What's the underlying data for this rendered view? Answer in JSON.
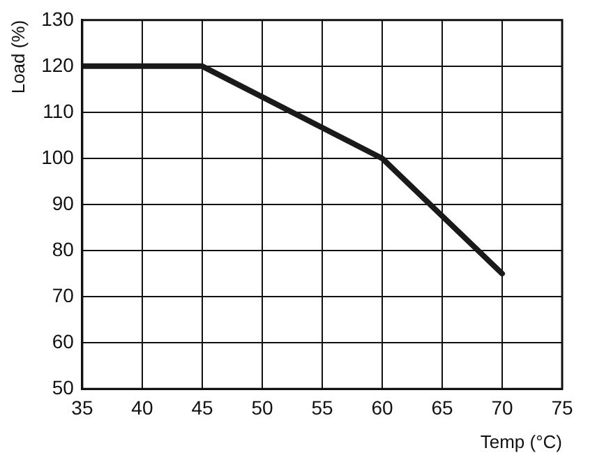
{
  "chart_data": {
    "type": "line",
    "xlabel": "Temp (°C)",
    "ylabel": "Load (%)",
    "x": [
      35,
      45,
      60,
      70
    ],
    "series": [
      {
        "color": "#1a1a1a",
        "values": [
          120,
          120,
          100,
          75
        ]
      }
    ],
    "xlim": [
      35,
      75
    ],
    "xticks": [
      35,
      40,
      45,
      50,
      55,
      60,
      65,
      70,
      75
    ],
    "ylim": [
      50,
      130
    ],
    "yticks": [
      50,
      60,
      70,
      80,
      90,
      100,
      110,
      120,
      130
    ],
    "grid": true,
    "legend": false,
    "marker": "none",
    "line_style": "solid"
  }
}
